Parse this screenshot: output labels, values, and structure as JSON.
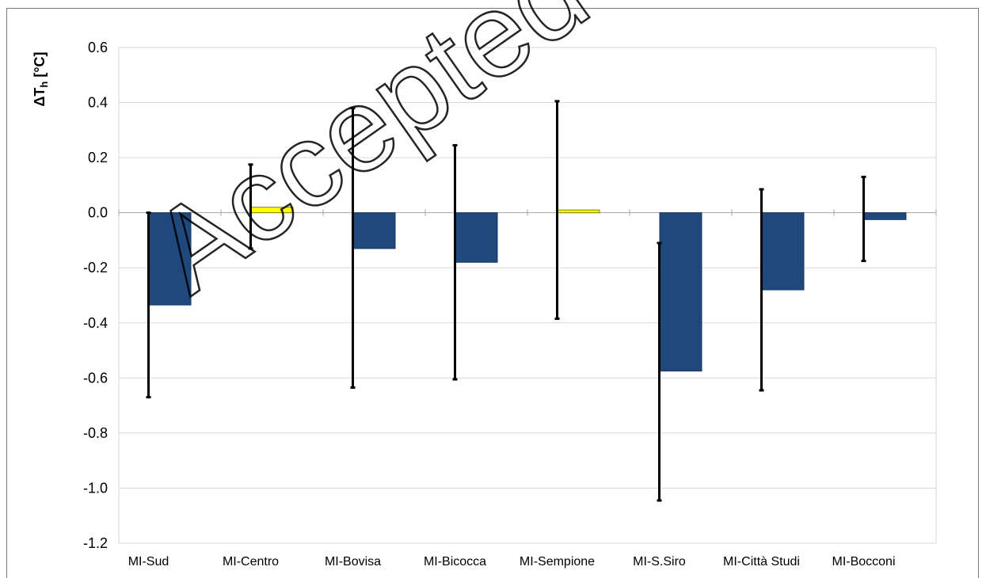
{
  "watermark": "Accepted",
  "chart_data": {
    "type": "bar",
    "ylabel": "ΔT",
    "ylabel_sub": "h",
    "ylabel_unit": " [°C]",
    "ylim": [
      -1.2,
      0.6
    ],
    "yticks": [
      0.6,
      0.4,
      0.2,
      0.0,
      -0.2,
      -0.4,
      -0.6,
      -0.8,
      -1.0,
      -1.2
    ],
    "ytick_labels": [
      "0.6",
      "0.4",
      "0.2",
      "0.0",
      "-0.2",
      "-0.4",
      "-0.6",
      "-0.8",
      "-1.0",
      "-1.2"
    ],
    "grid": true,
    "categories": [
      "MI-Sud",
      "MI-Centro",
      "MI-Bovisa",
      "MI-Bicocca",
      "MI-Sempione",
      "MI-S.Siro",
      "MI-Città Studi",
      "MI-Bocconi"
    ],
    "values": [
      -0.335,
      0.02,
      -0.13,
      -0.18,
      0.01,
      -0.575,
      -0.28,
      -0.025
    ],
    "error_low": [
      -0.67,
      -0.13,
      -0.635,
      -0.605,
      -0.385,
      -1.045,
      -0.645,
      -0.175
    ],
    "error_high": [
      0.0,
      0.175,
      0.38,
      0.245,
      0.405,
      -0.11,
      0.085,
      0.13
    ],
    "colors": {
      "negative": "#1f497d",
      "positive": "#ffff00",
      "positive_edge": "#7f7f00",
      "error_bar": "#000000",
      "grid": "#d9d9d9",
      "zero_line": "#a6a6a6"
    }
  }
}
